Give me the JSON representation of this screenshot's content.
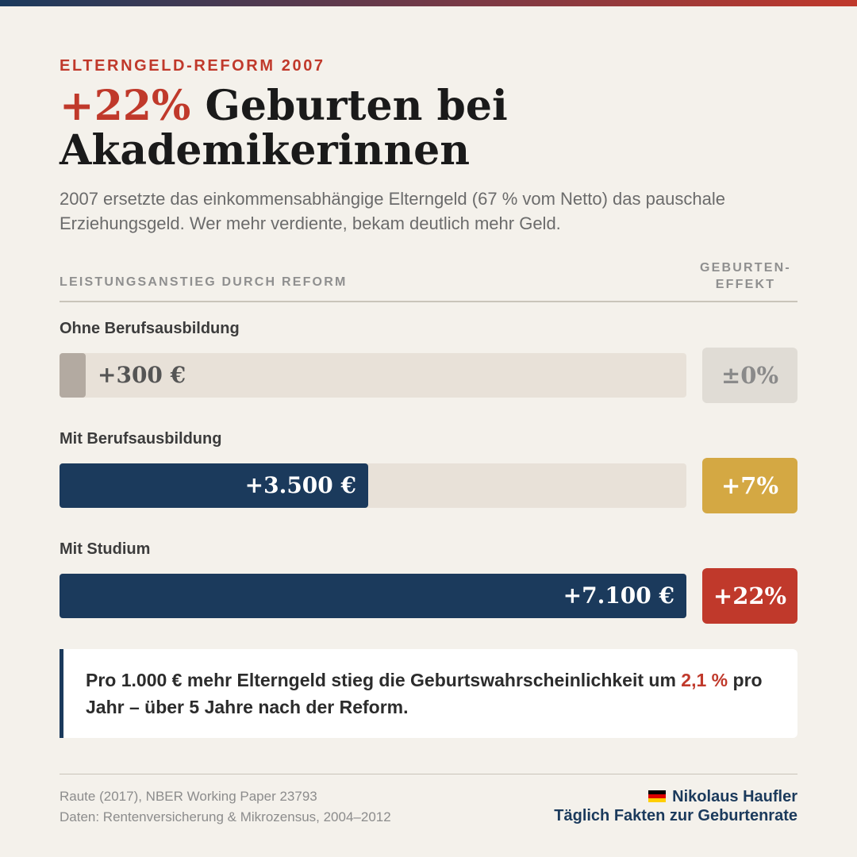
{
  "header": {
    "kicker": "ELTERNGELD-REFORM 2007",
    "title_accent": "+22%",
    "title_rest": " Geburten bei Akademikerinnen",
    "lead": "2007 ersetzte das einkommensabhängige Elterngeld (67 % vom Netto) das pauschale Erziehungsgeld. Wer mehr verdiente, bekam deutlich mehr Geld."
  },
  "columns": {
    "left": "LEISTUNGSANSTIEG DURCH REFORM",
    "right_line1": "GEBURTEN-",
    "right_line2": "EFFEKT"
  },
  "colors": {
    "accent_red": "#c0392b",
    "navy": "#1b3a5c",
    "gold": "#d4a843",
    "neutral_badge": "#e0dcd5",
    "neutral_bar": "#b3aaa1",
    "track": "#e8e1d8"
  },
  "chart_data": {
    "type": "bar",
    "orientation": "horizontal",
    "categories": [
      "Ohne Berufsausbildung",
      "Mit Berufsausbildung",
      "Mit Studium"
    ],
    "values": [
      300,
      3500,
      7100
    ],
    "value_labels": [
      "+300 €",
      "+3.500 €",
      "+7.100 €"
    ],
    "unit": "€",
    "xlim": [
      0,
      7100
    ],
    "effects": [
      "±0%",
      "+7%",
      "+22%"
    ],
    "effect_values": [
      0,
      7,
      22
    ],
    "effect_colors": [
      "#e0dcd5",
      "#d4a843",
      "#c0392b"
    ],
    "effect_text_colors": [
      "#8a8a8a",
      "#ffffff",
      "#ffffff"
    ],
    "bar_colors": [
      "#b3aaa1",
      "#1b3a5c",
      "#1b3a5c"
    ],
    "grid": false
  },
  "callout": {
    "text_before": "Pro 1.000 € mehr Elterngeld stieg die Geburtswahrscheinlichkeit um ",
    "highlight": "2,1 %",
    "text_after": " pro Jahr – über 5 Jahre nach der Reform."
  },
  "footer": {
    "source_line1": "Raute (2017), NBER Working Paper 23793",
    "source_line2": "Daten: Rentenversicherung & Mikrozensus, 2004–2012",
    "author": "Nikolaus Haufler",
    "tagline": "Täglich Fakten zur Geburtenrate",
    "flag_icon": "germany-flag-icon"
  }
}
